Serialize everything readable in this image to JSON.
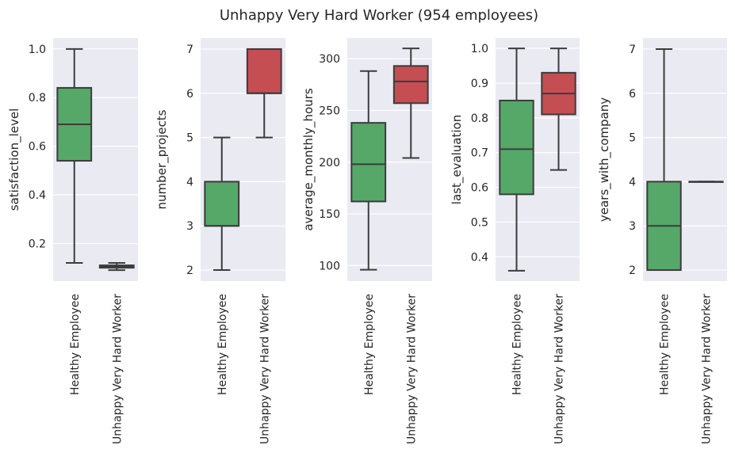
{
  "title": "Unhappy Very Hard Worker (954 employees)",
  "colors": {
    "panel_bg": "#eaeaf2",
    "grid": "#ffffff",
    "healthy": "#55a868",
    "unhappy": "#c44e52",
    "line": "#3c3c3c",
    "text": "#262626"
  },
  "chart_data": [
    {
      "type": "box",
      "ylabel": "satisfaction_level",
      "categories": [
        "Healthy Employee",
        "Unhappy Very Hard Worker"
      ],
      "ylim": [
        0.045,
        1.045
      ],
      "yticks": [
        0.2,
        0.4,
        0.6,
        0.8,
        1.0
      ],
      "ytick_labels": [
        "0.2",
        "0.4",
        "0.6",
        "0.8",
        "1.0"
      ],
      "grid": true,
      "boxes": [
        {
          "whislo": 0.12,
          "q1": 0.54,
          "med": 0.69,
          "q3": 0.84,
          "whishi": 1.0
        },
        {
          "whislo": 0.09,
          "q1": 0.1,
          "med": 0.105,
          "q3": 0.11,
          "whishi": 0.12
        }
      ]
    },
    {
      "type": "box",
      "ylabel": "number_projects",
      "categories": [
        "Healthy Employee",
        "Unhappy Very Hard Worker"
      ],
      "ylim": [
        1.75,
        7.25
      ],
      "yticks": [
        2,
        3,
        4,
        5,
        6,
        7
      ],
      "ytick_labels": [
        "2",
        "3",
        "4",
        "5",
        "6",
        "7"
      ],
      "grid": true,
      "boxes": [
        {
          "whislo": 2,
          "q1": 3,
          "med": 3,
          "q3": 4,
          "whishi": 5
        },
        {
          "whislo": 5,
          "q1": 6,
          "med": 6,
          "q3": 7,
          "whishi": 7
        }
      ]
    },
    {
      "type": "box",
      "ylabel": "average_monthly_hours",
      "categories": [
        "Healthy Employee",
        "Unhappy Very Hard Worker"
      ],
      "ylim": [
        85,
        320
      ],
      "yticks": [
        100,
        150,
        200,
        250,
        300
      ],
      "ytick_labels": [
        "100",
        "150",
        "200",
        "250",
        "300"
      ],
      "grid": true,
      "boxes": [
        {
          "whislo": 96,
          "q1": 162,
          "med": 198,
          "q3": 238,
          "whishi": 288
        },
        {
          "whislo": 204,
          "q1": 257,
          "med": 278,
          "q3": 293,
          "whishi": 310
        }
      ]
    },
    {
      "type": "box",
      "ylabel": "last_evaluation",
      "categories": [
        "Healthy Employee",
        "Unhappy Very Hard Worker"
      ],
      "ylim": [
        0.33,
        1.03
      ],
      "yticks": [
        0.4,
        0.5,
        0.6,
        0.7,
        0.8,
        0.9,
        1.0
      ],
      "ytick_labels": [
        "0.4",
        "0.5",
        "0.6",
        "0.7",
        "0.8",
        "0.9",
        "1.0"
      ],
      "grid": true,
      "boxes": [
        {
          "whislo": 0.36,
          "q1": 0.58,
          "med": 0.71,
          "q3": 0.85,
          "whishi": 1.0
        },
        {
          "whislo": 0.65,
          "q1": 0.81,
          "med": 0.87,
          "q3": 0.93,
          "whishi": 1.0
        }
      ]
    },
    {
      "type": "box",
      "ylabel": "years_with_company",
      "categories": [
        "Healthy Employee",
        "Unhappy Very Hard Worker"
      ],
      "ylim": [
        1.75,
        7.25
      ],
      "yticks": [
        2,
        3,
        4,
        5,
        6,
        7
      ],
      "ytick_labels": [
        "2",
        "3",
        "4",
        "5",
        "6",
        "7"
      ],
      "grid": true,
      "boxes": [
        {
          "whislo": 2,
          "q1": 2,
          "med": 3,
          "q3": 4,
          "whishi": 7
        },
        {
          "whislo": 4,
          "q1": 4,
          "med": 4,
          "q3": 4,
          "whishi": 4
        }
      ]
    }
  ]
}
